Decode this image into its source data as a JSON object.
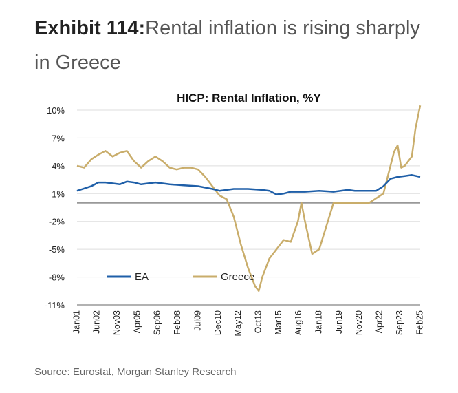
{
  "exhibit": {
    "label": "Exhibit 114:",
    "title": "Rental inflation is rising sharply in Greece"
  },
  "source": "Source: Eurostat, Morgan Stanley Research",
  "chart_data": {
    "type": "line",
    "title": "HICP: Rental Inflation, %Y",
    "xlabel": "",
    "ylabel": "",
    "ylim": [
      -11,
      10
    ],
    "yticks": [
      10,
      7,
      4,
      1,
      -2,
      -5,
      -8,
      -11
    ],
    "ytick_labels": [
      "10%",
      "7%",
      "4%",
      "1%",
      "-2%",
      "-5%",
      "-8%",
      "-11%"
    ],
    "xlim": [
      "2001-01",
      "2025-02"
    ],
    "xticks": [
      "Jan01",
      "Jun02",
      "Nov03",
      "Apr05",
      "Sep06",
      "Feb08",
      "Jul09",
      "Dec10",
      "May12",
      "Oct13",
      "Mar15",
      "Aug16",
      "Jan18",
      "Jun19",
      "Nov20",
      "Apr22",
      "Sep23",
      "Feb25"
    ],
    "grid": true,
    "zero_line": true,
    "legend_position": "bottom-left",
    "series": [
      {
        "name": "EA",
        "color": "#1f5fa8",
        "x": [
          "2001-01",
          "2002-01",
          "2002-07",
          "2003-01",
          "2004-01",
          "2004-07",
          "2005-01",
          "2005-07",
          "2006-07",
          "2007-07",
          "2008-07",
          "2009-07",
          "2010-07",
          "2011-01",
          "2011-07",
          "2012-01",
          "2013-01",
          "2014-01",
          "2014-07",
          "2015-01",
          "2015-07",
          "2016-01",
          "2017-01",
          "2018-01",
          "2019-01",
          "2020-01",
          "2020-07",
          "2021-01",
          "2021-07",
          "2022-01",
          "2022-07",
          "2023-01",
          "2023-07",
          "2024-01",
          "2024-07",
          "2025-02"
        ],
        "values": [
          1.3,
          1.8,
          2.2,
          2.2,
          2.0,
          2.3,
          2.2,
          2.0,
          2.2,
          2.0,
          1.9,
          1.8,
          1.5,
          1.3,
          1.4,
          1.5,
          1.5,
          1.4,
          1.3,
          0.9,
          1.0,
          1.2,
          1.2,
          1.3,
          1.2,
          1.4,
          1.3,
          1.3,
          1.3,
          1.3,
          1.8,
          2.6,
          2.8,
          2.9,
          3.0,
          2.8
        ]
      },
      {
        "name": "Greece",
        "color": "#c9ad6b",
        "x": [
          "2001-01",
          "2001-07",
          "2002-01",
          "2002-07",
          "2003-01",
          "2003-07",
          "2004-01",
          "2004-07",
          "2005-01",
          "2005-07",
          "2006-01",
          "2006-07",
          "2007-01",
          "2007-07",
          "2008-01",
          "2008-07",
          "2009-01",
          "2009-07",
          "2010-01",
          "2010-07",
          "2011-01",
          "2011-07",
          "2012-01",
          "2012-07",
          "2013-01",
          "2013-07",
          "2013-10",
          "2014-01",
          "2014-07",
          "2015-01",
          "2015-07",
          "2016-01",
          "2016-07",
          "2016-10",
          "2017-01",
          "2017-07",
          "2018-01",
          "2018-07",
          "2019-01",
          "2019-07",
          "2020-01",
          "2020-07",
          "2021-01",
          "2021-07",
          "2022-01",
          "2022-07",
          "2023-01",
          "2023-04",
          "2023-07",
          "2023-10",
          "2024-01",
          "2024-04",
          "2024-07",
          "2024-10",
          "2025-02"
        ],
        "values": [
          4.0,
          3.8,
          4.7,
          5.2,
          5.6,
          5.0,
          5.4,
          5.6,
          4.5,
          3.8,
          4.5,
          5.0,
          4.5,
          3.8,
          3.6,
          3.8,
          3.8,
          3.6,
          2.8,
          1.8,
          0.8,
          0.4,
          -1.5,
          -4.5,
          -7.0,
          -9.0,
          -9.5,
          -8.0,
          -6.0,
          -5.0,
          -4.0,
          -4.2,
          -2.0,
          0.0,
          -2.0,
          -5.5,
          -5.0,
          -2.5,
          0.0,
          0.0,
          0.0,
          0.0,
          0.0,
          0.0,
          0.5,
          1.0,
          4.0,
          5.5,
          6.2,
          3.8,
          4.0,
          4.5,
          5.0,
          8.0,
          10.5
        ]
      }
    ]
  }
}
